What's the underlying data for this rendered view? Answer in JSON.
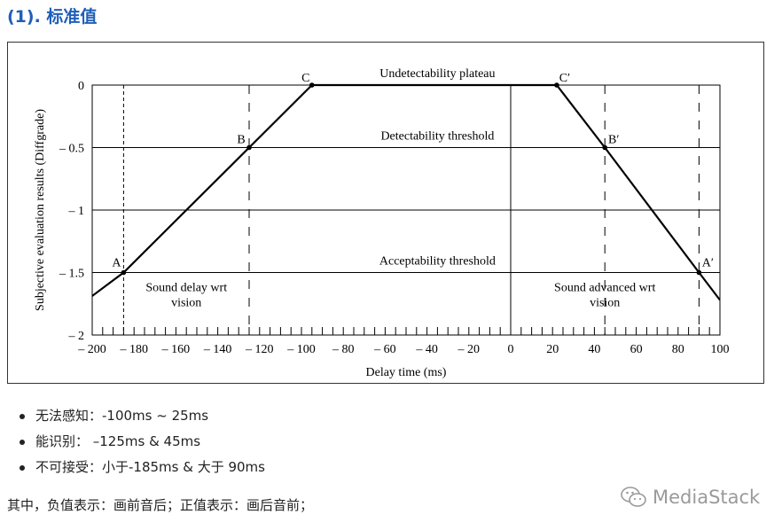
{
  "heading": "(1). 标准值",
  "chart_data": {
    "type": "line",
    "xlabel": "Delay time (ms)",
    "ylabel": "Subjective evaluation results (Diffgrade)",
    "xlim": [
      -200,
      100
    ],
    "ylim": [
      -2,
      0
    ],
    "x_ticks": [
      -200,
      -180,
      -160,
      -140,
      -120,
      -100,
      -80,
      -60,
      -40,
      -20,
      0,
      20,
      40,
      60,
      80,
      100
    ],
    "x_tick_labels": [
      "– 200",
      "– 180",
      "– 160",
      "– 140",
      "– 120",
      "– 100",
      "– 80",
      "– 60",
      "– 40",
      "– 20",
      "0",
      "20",
      "40",
      "60",
      "80",
      "100"
    ],
    "y_ticks": [
      0,
      -0.5,
      -1,
      -1.5,
      -2
    ],
    "y_tick_labels": [
      "0",
      "– 0.5",
      "– 1",
      "– 1.5",
      "– 2"
    ],
    "minor_x_step": 5,
    "grid_horizontal": true,
    "series": [
      {
        "x": [
          -205,
          -185,
          -125,
          -95,
          22,
          45,
          90,
          100
        ],
        "y": [
          -1.75,
          -1.5,
          -0.5,
          0,
          0,
          -0.5,
          -1.5,
          -1.72
        ]
      }
    ],
    "points": [
      {
        "label": "A",
        "x": -185,
        "y": -1.5
      },
      {
        "label": "B",
        "x": -125,
        "y": -0.5
      },
      {
        "label": "C",
        "x": -95,
        "y": 0
      },
      {
        "label": "C′",
        "x": 22,
        "y": 0
      },
      {
        "label": "B′",
        "x": 45,
        "y": -0.5
      },
      {
        "label": "A′",
        "x": 90,
        "y": -1.5
      }
    ],
    "vertical_lines": [
      {
        "x": -185,
        "style": "dotted"
      },
      {
        "x": -125,
        "style": "dashed"
      },
      {
        "x": 0,
        "style": "solid"
      },
      {
        "x": 45,
        "style": "dashed"
      },
      {
        "x": 90,
        "style": "dashed"
      }
    ],
    "annotations": [
      {
        "text": "Undetectability plateau",
        "x": -35,
        "y": 0
      },
      {
        "text": "Detectability threshold",
        "x": -35,
        "y": -0.5
      },
      {
        "text": "Acceptability threshold",
        "x": -35,
        "y": -1.5
      },
      {
        "lines": [
          "Sound delay wrt",
          "vision"
        ],
        "x": -155,
        "y": -1.65
      },
      {
        "lines": [
          "Sound advanced wrt",
          "vision"
        ],
        "x": 45,
        "y": -1.65
      }
    ]
  },
  "bullets": [
    "无法感知：-100ms ~ 25ms",
    "能识别：  –125ms & 45ms",
    "不可接受：小于-185ms & 大于 90ms"
  ],
  "note": "其中，负值表示：画前音后；正值表示：画后音前；",
  "watermark": {
    "icon": "wechat-icon",
    "text": "MediaStack"
  }
}
